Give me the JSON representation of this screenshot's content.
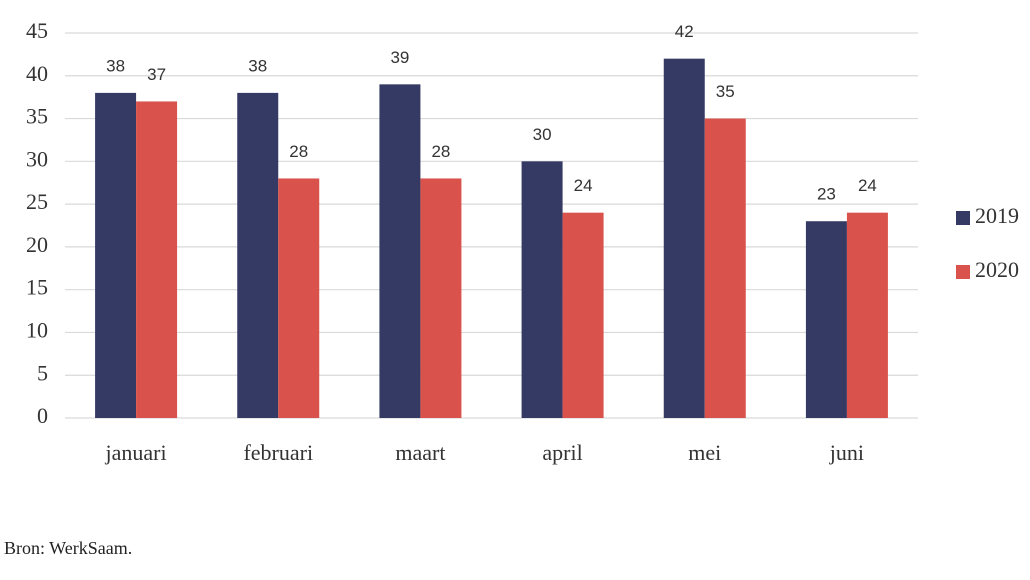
{
  "chart_data": {
    "type": "bar",
    "categories": [
      "januari",
      "februari",
      "maart",
      "april",
      "mei",
      "juni"
    ],
    "series": [
      {
        "name": "2019",
        "color": "#343a63",
        "values": [
          38,
          38,
          39,
          30,
          42,
          23
        ]
      },
      {
        "name": "2020",
        "color": "#d9534c",
        "values": [
          37,
          28,
          28,
          24,
          35,
          24
        ]
      }
    ],
    "ylim": [
      0,
      45
    ],
    "yticks": [
      0,
      5,
      10,
      15,
      20,
      25,
      30,
      35,
      40,
      45
    ],
    "grid": true,
    "legend": "right",
    "source": "Bron: WerkSaam."
  }
}
